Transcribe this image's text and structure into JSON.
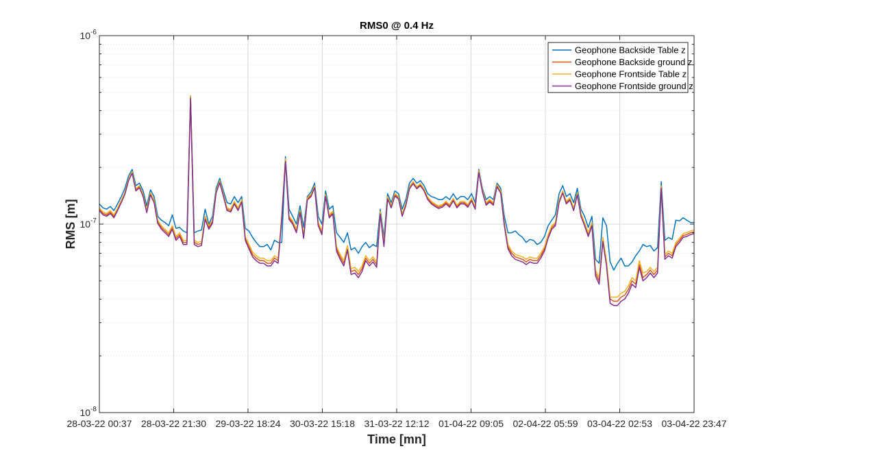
{
  "chart_data": {
    "type": "line",
    "title": "RMS0 @ 0.4 Hz",
    "xlabel": "Time [mn]",
    "ylabel": "RMS [m]",
    "yscale": "log",
    "ylim": [
      1e-08,
      1e-06
    ],
    "y_tick_labels": [
      {
        "value": 1e-08,
        "base": "10",
        "exp": "-8"
      },
      {
        "value": 1e-07,
        "base": "10",
        "exp": "-7"
      },
      {
        "value": 1e-06,
        "base": "10",
        "exp": "-6"
      }
    ],
    "x_tick_labels": [
      "28-03-22 00:37",
      "28-03-22 21:30",
      "29-03-22 18:24",
      "30-03-22 15:18",
      "31-03-22 12:12",
      "01-04-22 09:05",
      "02-04-22 05:59",
      "03-04-22 02:53",
      "03-04-22 23:47"
    ],
    "grid": true,
    "legend_position": "top-right",
    "colors": [
      "#0072BD",
      "#D95319",
      "#EDB120",
      "#7E2F8E"
    ],
    "series": [
      {
        "name": "Geophone Backside Table z",
        "values": [
          1.28e-07,
          1.22e-07,
          1.2e-07,
          1.24e-07,
          1.18e-07,
          1.28e-07,
          1.4e-07,
          1.55e-07,
          1.8e-07,
          1.95e-07,
          1.6e-07,
          1.65e-07,
          1.5e-07,
          1.25e-07,
          1.52e-07,
          1.4e-07,
          1.1e-07,
          1.05e-07,
          1.02e-07,
          9.8e-08,
          1.12e-07,
          9.5e-08,
          9.6e-08,
          9.2e-08,
          9e-08,
          4.8e-07,
          9e-08,
          9.2e-08,
          9.3e-08,
          1.2e-07,
          1e-07,
          1.1e-07,
          1.55e-07,
          1.75e-07,
          1.5e-07,
          1.3e-07,
          1.28e-07,
          1.4e-07,
          1.3e-07,
          1.4e-07,
          9.5e-08,
          9.2e-08,
          8.5e-08,
          8e-08,
          7.6e-08,
          7.6e-08,
          7.8e-08,
          7.3e-08,
          8.2e-08,
          8e-08,
          8e-08,
          2.28e-07,
          1.2e-07,
          1.1e-07,
          1e-07,
          1.25e-07,
          9.6e-08,
          1.4e-07,
          1.48e-07,
          1.65e-07,
          1.1e-07,
          1e-07,
          1.5e-07,
          1.2e-07,
          1.25e-07,
          9e-08,
          8.5e-08,
          8e-08,
          9e-08,
          7.3e-08,
          7.5e-08,
          7e-08,
          7.6e-08,
          8e-08,
          7.5e-08,
          7.8e-08,
          7.6e-08,
          1.2e-07,
          8.5e-08,
          1.45e-07,
          1.3e-07,
          1.5e-07,
          1.45e-07,
          1.2e-07,
          1.35e-07,
          1.65e-07,
          1.75e-07,
          1.65e-07,
          1.7e-07,
          1.6e-07,
          1.45e-07,
          1.4e-07,
          1.38e-07,
          1.35e-07,
          1.35e-07,
          1.4e-07,
          1.35e-07,
          1.45e-07,
          1.35e-07,
          1.4e-07,
          1.4e-07,
          1.35e-07,
          1.45e-07,
          1.3e-07,
          1.95e-07,
          1.55e-07,
          1.35e-07,
          1.4e-07,
          1.35e-07,
          1.65e-07,
          1.55e-07,
          1.1e-07,
          9e-08,
          9e-08,
          9.2e-08,
          8.8e-08,
          8.5e-08,
          8e-08,
          8.3e-08,
          8.2e-08,
          7.8e-08,
          8e-08,
          8.6e-08,
          9.8e-08,
          1.05e-07,
          1.12e-07,
          1.45e-07,
          1.6e-07,
          1.4e-07,
          1.45e-07,
          1.3e-07,
          1.55e-07,
          1.2e-07,
          1.1e-07,
          9.6e-08,
          1.1e-07,
          6.5e-08,
          6.2e-08,
          1.08e-07,
          9.8e-08,
          6.3e-08,
          5.7e-08,
          6.2e-08,
          6.6e-08,
          6e-08,
          6e-08,
          6.3e-08,
          6.8e-08,
          7.2e-08,
          7.8e-08,
          7.6e-08,
          7.7e-08,
          7.2e-08,
          7.5e-08,
          1.68e-07,
          8.2e-08,
          8.5e-08,
          8.3e-08,
          1.05e-07,
          1.04e-07,
          1.08e-07,
          1.05e-07,
          1.02e-07,
          1.02e-07
        ]
      },
      {
        "name": "Geophone Backside ground z",
        "values": [
          1.2e-07,
          1.14e-07,
          1.12e-07,
          1.16e-07,
          1.1e-07,
          1.2e-07,
          1.32e-07,
          1.46e-07,
          1.72e-07,
          1.88e-07,
          1.52e-07,
          1.58e-07,
          1.42e-07,
          1.17e-07,
          1.45e-07,
          1.32e-07,
          1.03e-07,
          9.6e-08,
          9.2e-08,
          8.8e-08,
          9.6e-08,
          8.4e-08,
          8.8e-08,
          8e-08,
          8e-08,
          4.7e-07,
          8e-08,
          7.8e-08,
          7.9e-08,
          1.08e-07,
          9.6e-08,
          1.03e-07,
          1.48e-07,
          1.68e-07,
          1.42e-07,
          1.2e-07,
          1.18e-07,
          1.3e-07,
          1.2e-07,
          1.33e-07,
          8.4e-08,
          7.6e-08,
          6.9e-08,
          6.6e-08,
          6.4e-08,
          6.4e-08,
          6.2e-08,
          6.2e-08,
          6.6e-08,
          6.4e-08,
          1.1e-07,
          2.2e-07,
          1.08e-07,
          1.02e-07,
          9.2e-08,
          1.17e-07,
          8.6e-08,
          1.36e-07,
          1.42e-07,
          1.58e-07,
          1e-07,
          9e-08,
          1.42e-07,
          1.1e-07,
          1.15e-07,
          7.4e-08,
          6.7e-08,
          6.2e-08,
          7.5e-08,
          5.6e-08,
          5.7e-08,
          5.4e-08,
          5.8e-08,
          6.6e-08,
          6.2e-08,
          6.5e-08,
          6.1e-08,
          1.15e-07,
          7.8e-08,
          1.38e-07,
          1.24e-07,
          1.43e-07,
          1.38e-07,
          1.12e-07,
          1.27e-07,
          1.56e-07,
          1.66e-07,
          1.56e-07,
          1.62e-07,
          1.52e-07,
          1.37e-07,
          1.3e-07,
          1.26e-07,
          1.23e-07,
          1.25e-07,
          1.3e-07,
          1.25e-07,
          1.35e-07,
          1.24e-07,
          1.3e-07,
          1.3e-07,
          1.25e-07,
          1.35e-07,
          1.22e-07,
          1.9e-07,
          1.5e-07,
          1.28e-07,
          1.33e-07,
          1.28e-07,
          1.6e-07,
          1.48e-07,
          1e-07,
          7.6e-08,
          7e-08,
          6.7e-08,
          6.6e-08,
          6.5e-08,
          6.3e-08,
          6.5e-08,
          6.4e-08,
          6.4e-08,
          6.8e-08,
          7.4e-08,
          8.6e-08,
          9.6e-08,
          1e-07,
          1.32e-07,
          1.48e-07,
          1.3e-07,
          1.36e-07,
          1.2e-07,
          1.45e-07,
          1.12e-07,
          1e-07,
          8.8e-08,
          1e-07,
          5.5e-08,
          5e-08,
          8.3e-08,
          6.2e-08,
          4e-08,
          3.9e-08,
          3.9e-08,
          4.1e-08,
          4.2e-08,
          4.5e-08,
          5e-08,
          4.8e-08,
          6.1e-08,
          5.2e-08,
          5.4e-08,
          5.7e-08,
          5.4e-08,
          5.7e-08,
          1.58e-07,
          6.7e-08,
          7e-08,
          6.8e-08,
          7.8e-08,
          8.2e-08,
          8.7e-08,
          8.8e-08,
          9e-08,
          9.1e-08
        ]
      },
      {
        "name": "Geophone Frontside Table z",
        "values": [
          1.22e-07,
          1.16e-07,
          1.14e-07,
          1.18e-07,
          1.12e-07,
          1.22e-07,
          1.34e-07,
          1.48e-07,
          1.74e-07,
          1.9e-07,
          1.54e-07,
          1.6e-07,
          1.44e-07,
          1.19e-07,
          1.47e-07,
          1.34e-07,
          1.05e-07,
          9.8e-08,
          9.4e-08,
          9e-08,
          9.8e-08,
          8.6e-08,
          9e-08,
          8.2e-08,
          8.2e-08,
          4.8e-07,
          8.2e-08,
          8e-08,
          8.1e-08,
          1.1e-07,
          9.8e-08,
          1.05e-07,
          1.5e-07,
          1.7e-07,
          1.44e-07,
          1.22e-07,
          1.2e-07,
          1.32e-07,
          1.22e-07,
          1.35e-07,
          8.6e-08,
          7.8e-08,
          7.1e-08,
          6.8e-08,
          6.6e-08,
          6.6e-08,
          6.4e-08,
          6.4e-08,
          6.8e-08,
          6.6e-08,
          1.12e-07,
          2.22e-07,
          1.1e-07,
          1.04e-07,
          9.4e-08,
          1.19e-07,
          8.8e-08,
          1.38e-07,
          1.44e-07,
          1.6e-07,
          1.02e-07,
          9.2e-08,
          1.44e-07,
          1.12e-07,
          1.17e-07,
          7.6e-08,
          6.9e-08,
          6.4e-08,
          7.7e-08,
          5.8e-08,
          5.9e-08,
          5.6e-08,
          6e-08,
          6.8e-08,
          6.4e-08,
          6.7e-08,
          6.3e-08,
          1.17e-07,
          8e-08,
          1.4e-07,
          1.26e-07,
          1.45e-07,
          1.4e-07,
          1.14e-07,
          1.29e-07,
          1.58e-07,
          1.68e-07,
          1.58e-07,
          1.64e-07,
          1.54e-07,
          1.39e-07,
          1.32e-07,
          1.28e-07,
          1.25e-07,
          1.27e-07,
          1.32e-07,
          1.27e-07,
          1.37e-07,
          1.26e-07,
          1.32e-07,
          1.32e-07,
          1.27e-07,
          1.37e-07,
          1.24e-07,
          1.92e-07,
          1.52e-07,
          1.3e-07,
          1.35e-07,
          1.3e-07,
          1.62e-07,
          1.5e-07,
          1.02e-07,
          7.8e-08,
          7.2e-08,
          6.9e-08,
          6.8e-08,
          6.7e-08,
          6.5e-08,
          6.7e-08,
          6.6e-08,
          6.6e-08,
          7e-08,
          7.6e-08,
          8.8e-08,
          9.8e-08,
          1.02e-07,
          1.34e-07,
          1.5e-07,
          1.32e-07,
          1.38e-07,
          1.22e-07,
          1.47e-07,
          1.14e-07,
          1.02e-07,
          9e-08,
          1.02e-07,
          5.7e-08,
          5.2e-08,
          8.5e-08,
          6.4e-08,
          4.1e-08,
          4.1e-08,
          4.1e-08,
          4.3e-08,
          4.4e-08,
          4.7e-08,
          5.2e-08,
          5e-08,
          6.4e-08,
          5.5e-08,
          5.6e-08,
          5.9e-08,
          5.6e-08,
          5.9e-08,
          1.6e-07,
          6.9e-08,
          7.2e-08,
          7e-08,
          8e-08,
          8.4e-08,
          8.9e-08,
          9e-08,
          9.2e-08,
          9.3e-08
        ]
      },
      {
        "name": "Geophone Frontside ground z",
        "values": [
          1.18e-07,
          1.12e-07,
          1.1e-07,
          1.14e-07,
          1.08e-07,
          1.18e-07,
          1.3e-07,
          1.44e-07,
          1.7e-07,
          1.86e-07,
          1.5e-07,
          1.56e-07,
          1.4e-07,
          1.15e-07,
          1.43e-07,
          1.3e-07,
          1.01e-07,
          9.4e-08,
          9e-08,
          8.6e-08,
          9.4e-08,
          8.2e-08,
          8.6e-08,
          7.8e-08,
          7.8e-08,
          4.65e-07,
          7.8e-08,
          7.6e-08,
          7.7e-08,
          1.06e-07,
          9.4e-08,
          1.01e-07,
          1.46e-07,
          1.66e-07,
          1.4e-07,
          1.18e-07,
          1.16e-07,
          1.28e-07,
          1.18e-07,
          1.31e-07,
          8.2e-08,
          7.4e-08,
          6.7e-08,
          6.4e-08,
          6.2e-08,
          6.2e-08,
          6e-08,
          6e-08,
          6.4e-08,
          6.2e-08,
          1.08e-07,
          2.15e-07,
          1.06e-07,
          1e-07,
          9e-08,
          1.15e-07,
          8.4e-08,
          1.34e-07,
          1.4e-07,
          1.56e-07,
          9.8e-08,
          8.8e-08,
          1.4e-07,
          1.08e-07,
          1.13e-07,
          7.2e-08,
          6.5e-08,
          6e-08,
          7.3e-08,
          5.4e-08,
          5.5e-08,
          5.2e-08,
          5.6e-08,
          6.4e-08,
          6e-08,
          6.3e-08,
          5.9e-08,
          1.13e-07,
          7.6e-08,
          1.36e-07,
          1.22e-07,
          1.41e-07,
          1.36e-07,
          1.1e-07,
          1.25e-07,
          1.54e-07,
          1.64e-07,
          1.54e-07,
          1.6e-07,
          1.5e-07,
          1.35e-07,
          1.28e-07,
          1.24e-07,
          1.21e-07,
          1.23e-07,
          1.28e-07,
          1.23e-07,
          1.33e-07,
          1.22e-07,
          1.28e-07,
          1.28e-07,
          1.23e-07,
          1.33e-07,
          1.2e-07,
          1.88e-07,
          1.48e-07,
          1.26e-07,
          1.31e-07,
          1.26e-07,
          1.58e-07,
          1.46e-07,
          9.8e-08,
          7.4e-08,
          6.8e-08,
          6.5e-08,
          6.4e-08,
          6.3e-08,
          6.1e-08,
          6.3e-08,
          6.2e-08,
          6.2e-08,
          6.6e-08,
          7.2e-08,
          8.4e-08,
          9.4e-08,
          9.8e-08,
          1.3e-07,
          1.46e-07,
          1.28e-07,
          1.34e-07,
          1.18e-07,
          1.43e-07,
          1.1e-07,
          9.8e-08,
          8.6e-08,
          9.8e-08,
          5.3e-08,
          4.8e-08,
          8.1e-08,
          6e-08,
          3.8e-08,
          3.7e-08,
          3.7e-08,
          3.9e-08,
          4e-08,
          4.3e-08,
          4.8e-08,
          4.6e-08,
          5.9e-08,
          5e-08,
          5.2e-08,
          5.5e-08,
          5.2e-08,
          5.5e-08,
          1.55e-07,
          6.5e-08,
          6.8e-08,
          6.6e-08,
          7.6e-08,
          8e-08,
          8.5e-08,
          8.6e-08,
          8.8e-08,
          8.9e-08
        ]
      }
    ]
  }
}
